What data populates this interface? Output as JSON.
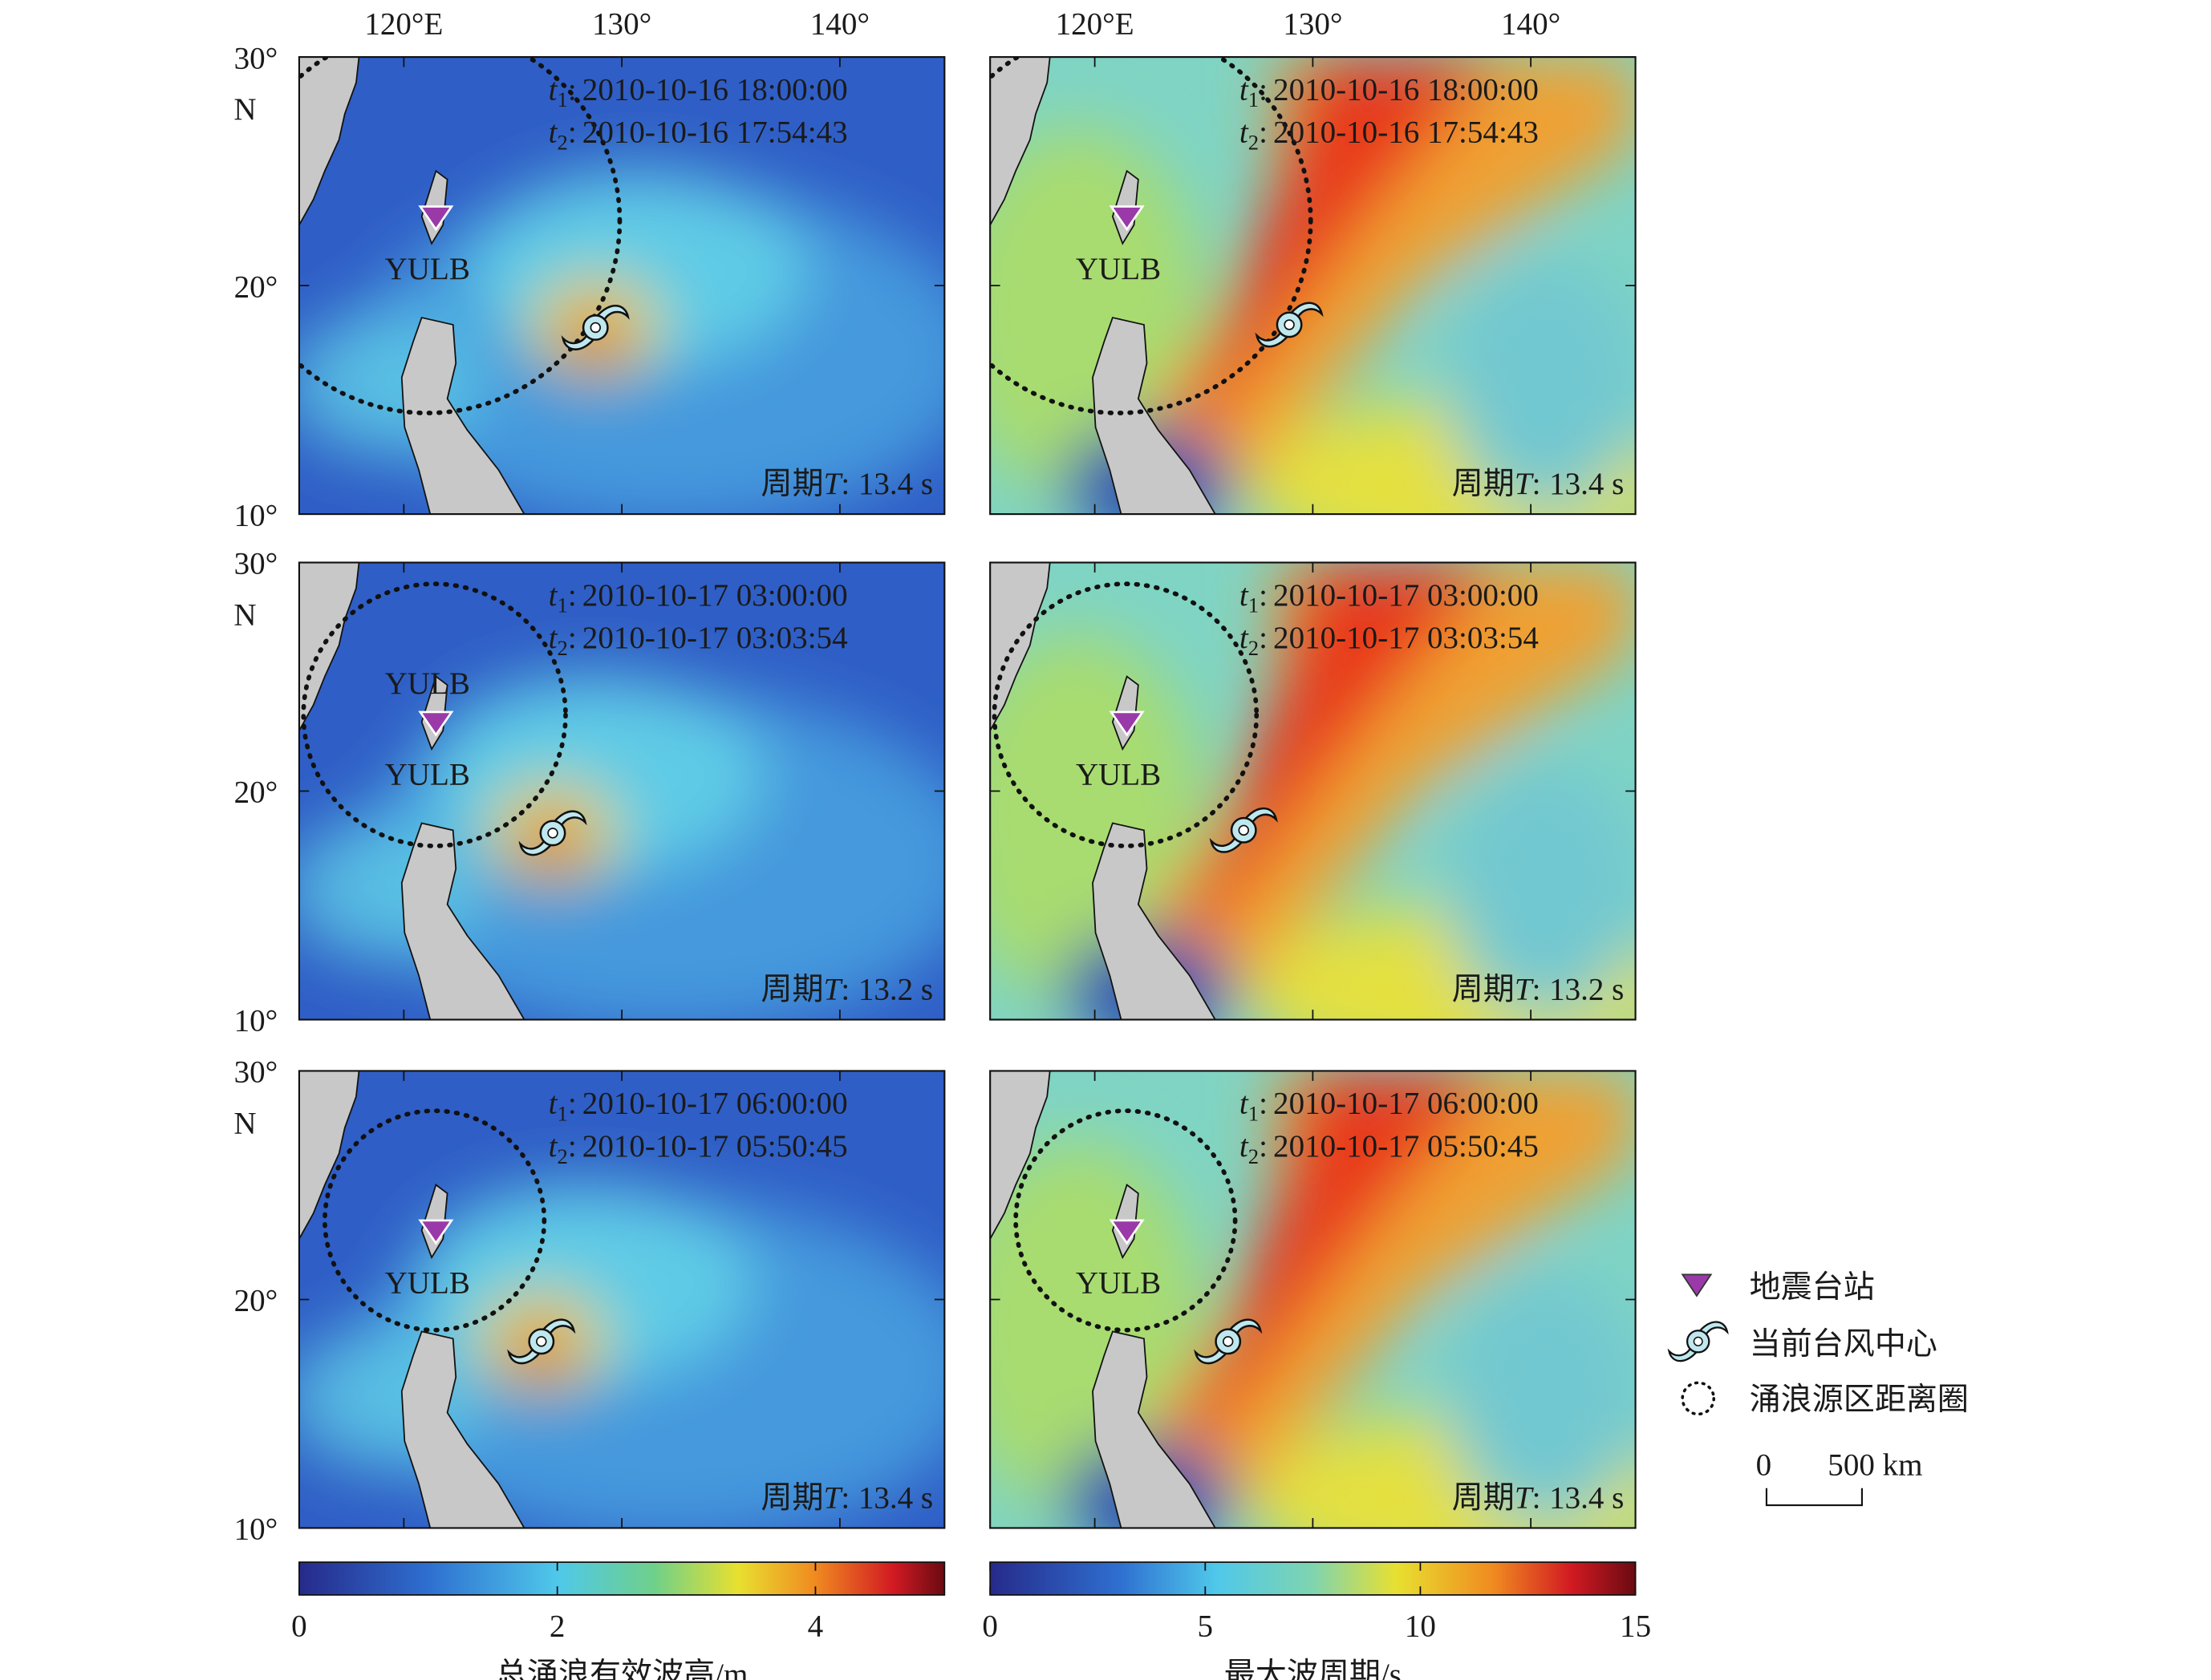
{
  "map_axes": {
    "lon_ticks": [
      {
        "value": 120,
        "label": "120°E"
      },
      {
        "value": 130,
        "label": "130°"
      },
      {
        "value": 140,
        "label": "140°"
      }
    ],
    "lat_ticks": [
      {
        "value": 30,
        "label": "30°"
      },
      {
        "value": 20,
        "label": "20°"
      },
      {
        "value": 10,
        "label": "10°"
      }
    ],
    "lat_unit": "N"
  },
  "labels": {
    "t": "t",
    "sub1": "1",
    "sub2": "2",
    "colon": ":",
    "period": "周期",
    "period_symbol": "T"
  },
  "panels": [
    {
      "t1": "2010-10-16 18:00:00",
      "t2": "2010-10-16 17:54:43",
      "period": "13.4 s",
      "station_labels": [
        "YULB"
      ]
    },
    {
      "t1": "2010-10-16 18:00:00",
      "t2": "2010-10-16 17:54:43",
      "period": "13.4 s",
      "station_labels": [
        "YULB"
      ]
    },
    {
      "t1": "2010-10-17 03:00:00",
      "t2": "2010-10-17 03:03:54",
      "period": "13.2 s",
      "station_labels": [
        "YULB",
        "YULB"
      ]
    },
    {
      "t1": "2010-10-17 03:00:00",
      "t2": "2010-10-17 03:03:54",
      "period": "13.2 s",
      "station_labels": [
        "YULB"
      ]
    },
    {
      "t1": "2010-10-17 06:00:00",
      "t2": "2010-10-17 05:50:45",
      "period": "13.4 s",
      "station_labels": [
        "YULB"
      ]
    },
    {
      "t1": "2010-10-17 06:00:00",
      "t2": "2010-10-17 05:50:45",
      "period": "13.4 s",
      "station_labels": [
        "YULB"
      ]
    }
  ],
  "colorbars": [
    {
      "label": "总涌浪有效波高/m",
      "range": [
        0,
        5
      ],
      "ticks": [
        0,
        2,
        4
      ]
    },
    {
      "label": "最大波周期/s",
      "range": [
        0,
        15
      ],
      "ticks": [
        0,
        5,
        10,
        15
      ]
    }
  ],
  "legend": {
    "station": "地震台站",
    "typhoon": "当前台风中心",
    "circle": "涌浪源区距离圈"
  },
  "scale_bar": {
    "start": "0",
    "end": "500 km"
  }
}
